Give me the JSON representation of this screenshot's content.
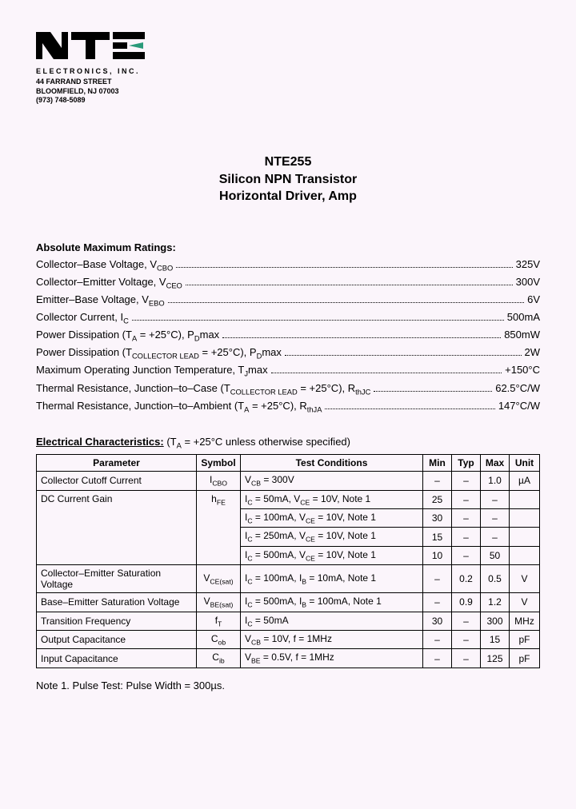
{
  "logo": {
    "text_color": "#000000",
    "accent_color": "#2a9a7a"
  },
  "company": {
    "name": "ELECTRONICS, INC.",
    "street": "44 FARRAND STREET",
    "city": "BLOOMFIELD, NJ 07003",
    "phone": "(973) 748-5089"
  },
  "title": {
    "line1": "NTE255",
    "line2": "Silicon NPN Transistor",
    "line3": "Horizontal Driver, Amp"
  },
  "ratings_heading": "Absolute Maximum Ratings:",
  "ratings": [
    {
      "label_html": "Collector–Base Voltage, V<span class=\"sub\">CBO</span>",
      "value": "325V"
    },
    {
      "label_html": "Collector–Emitter Voltage, V<span class=\"sub\">CEO</span>",
      "value": "300V"
    },
    {
      "label_html": "Emitter–Base Voltage, V<span class=\"sub\">EBO</span>",
      "value": "6V"
    },
    {
      "label_html": "Collector Current, I<span class=\"sub\">C</span>",
      "value": "500mA"
    },
    {
      "label_html": "Power Dissipation (T<span class=\"sub\">A</span> = +25°C), P<span class=\"sub\">D</span>max",
      "value": "850mW"
    },
    {
      "label_html": "Power Dissipation (T<span class=\"sub\">COLLECTOR LEAD</span> = +25°C), P<span class=\"sub\">D</span>max",
      "value": "2W"
    },
    {
      "label_html": "Maximum Operating Junction Temperature, T<span class=\"sub\">J</span>max",
      "value": "+150°C"
    },
    {
      "label_html": "Thermal Resistance, Junction–to–Case (T<span class=\"sub\">COLLECTOR LEAD</span> = +25°C), R<span class=\"sub\">thJC</span>",
      "value": "62.5°C/W"
    },
    {
      "label_html": "Thermal Resistance, Junction–to–Ambient (T<span class=\"sub\">A</span> = +25°C), R<span class=\"sub\">thJA</span>",
      "value": "147°C/W"
    }
  ],
  "char_heading": "Electrical Characteristics:",
  "char_cond_text_html": "(T<span class=\"sub\">A</span> = +25°C unless otherwise specified)",
  "char_table": {
    "headers": [
      "Parameter",
      "Symbol",
      "Test Conditions",
      "Min",
      "Typ",
      "Max",
      "Unit"
    ],
    "rows": [
      {
        "param": "Collector Cutoff Current",
        "param_rowspan": 1,
        "symbol_html": "I<span class=\"sub\">CBO</span>",
        "symbol_rowspan": 1,
        "cond_html": "V<span class=\"sub\">CB</span> = 300V",
        "min": "–",
        "typ": "–",
        "max": "1.0",
        "unit": "µA"
      },
      {
        "param": "DC Current Gain",
        "param_rowspan": 4,
        "symbol_html": "h<span class=\"sub\">FE</span>",
        "symbol_rowspan": 4,
        "cond_html": "I<span class=\"sub\">C</span> = 50mA, V<span class=\"sub\">CE</span> = 10V, Note 1",
        "min": "25",
        "typ": "–",
        "max": "–",
        "unit": ""
      },
      {
        "cond_html": "I<span class=\"sub\">C</span> = 100mA, V<span class=\"sub\">CE</span> = 10V, Note 1",
        "min": "30",
        "typ": "–",
        "max": "–",
        "unit": ""
      },
      {
        "cond_html": "I<span class=\"sub\">C</span> = 250mA, V<span class=\"sub\">CE</span> = 10V, Note 1",
        "min": "15",
        "typ": "–",
        "max": "–",
        "unit": ""
      },
      {
        "cond_html": "I<span class=\"sub\">C</span> = 500mA, V<span class=\"sub\">CE</span> = 10V, Note 1",
        "min": "10",
        "typ": "–",
        "max": "50",
        "unit": ""
      },
      {
        "param": "Collector–Emitter Saturation Voltage",
        "param_rowspan": 1,
        "symbol_html": "V<span class=\"sub\">CE(sat)</span>",
        "symbol_rowspan": 1,
        "cond_html": "I<span class=\"sub\">C</span> = 100mA, I<span class=\"sub\">B</span> = 10mA, Note 1",
        "min": "–",
        "typ": "0.2",
        "max": "0.5",
        "unit": "V"
      },
      {
        "param": "Base–Emitter Saturation Voltage",
        "param_rowspan": 1,
        "symbol_html": "V<span class=\"sub\">BE(sat)</span>",
        "symbol_rowspan": 1,
        "cond_html": "I<span class=\"sub\">C</span> = 500mA, I<span class=\"sub\">B</span> = 100mA, Note 1",
        "min": "–",
        "typ": "0.9",
        "max": "1.2",
        "unit": "V"
      },
      {
        "param": "Transition Frequency",
        "param_rowspan": 1,
        "symbol_html": "f<span class=\"sub\">T</span>",
        "symbol_rowspan": 1,
        "cond_html": "I<span class=\"sub\">C</span> = 50mA",
        "min": "30",
        "typ": "–",
        "max": "300",
        "unit": "MHz"
      },
      {
        "param": "Output Capacitance",
        "param_rowspan": 1,
        "symbol_html": "C<span class=\"sub\">ob</span>",
        "symbol_rowspan": 1,
        "cond_html": "V<span class=\"sub\">CB</span> = 10V, f = 1MHz",
        "min": "–",
        "typ": "–",
        "max": "15",
        "unit": "pF"
      },
      {
        "param": "Input Capacitance",
        "param_rowspan": 1,
        "symbol_html": "C<span class=\"sub\">ib</span>",
        "symbol_rowspan": 1,
        "cond_html": "V<span class=\"sub\">BE</span> = 0.5V, f = 1MHz",
        "min": "–",
        "typ": "–",
        "max": "125",
        "unit": "pF"
      }
    ]
  },
  "note": "Note 1. Pulse Test: Pulse Width = 300µs."
}
